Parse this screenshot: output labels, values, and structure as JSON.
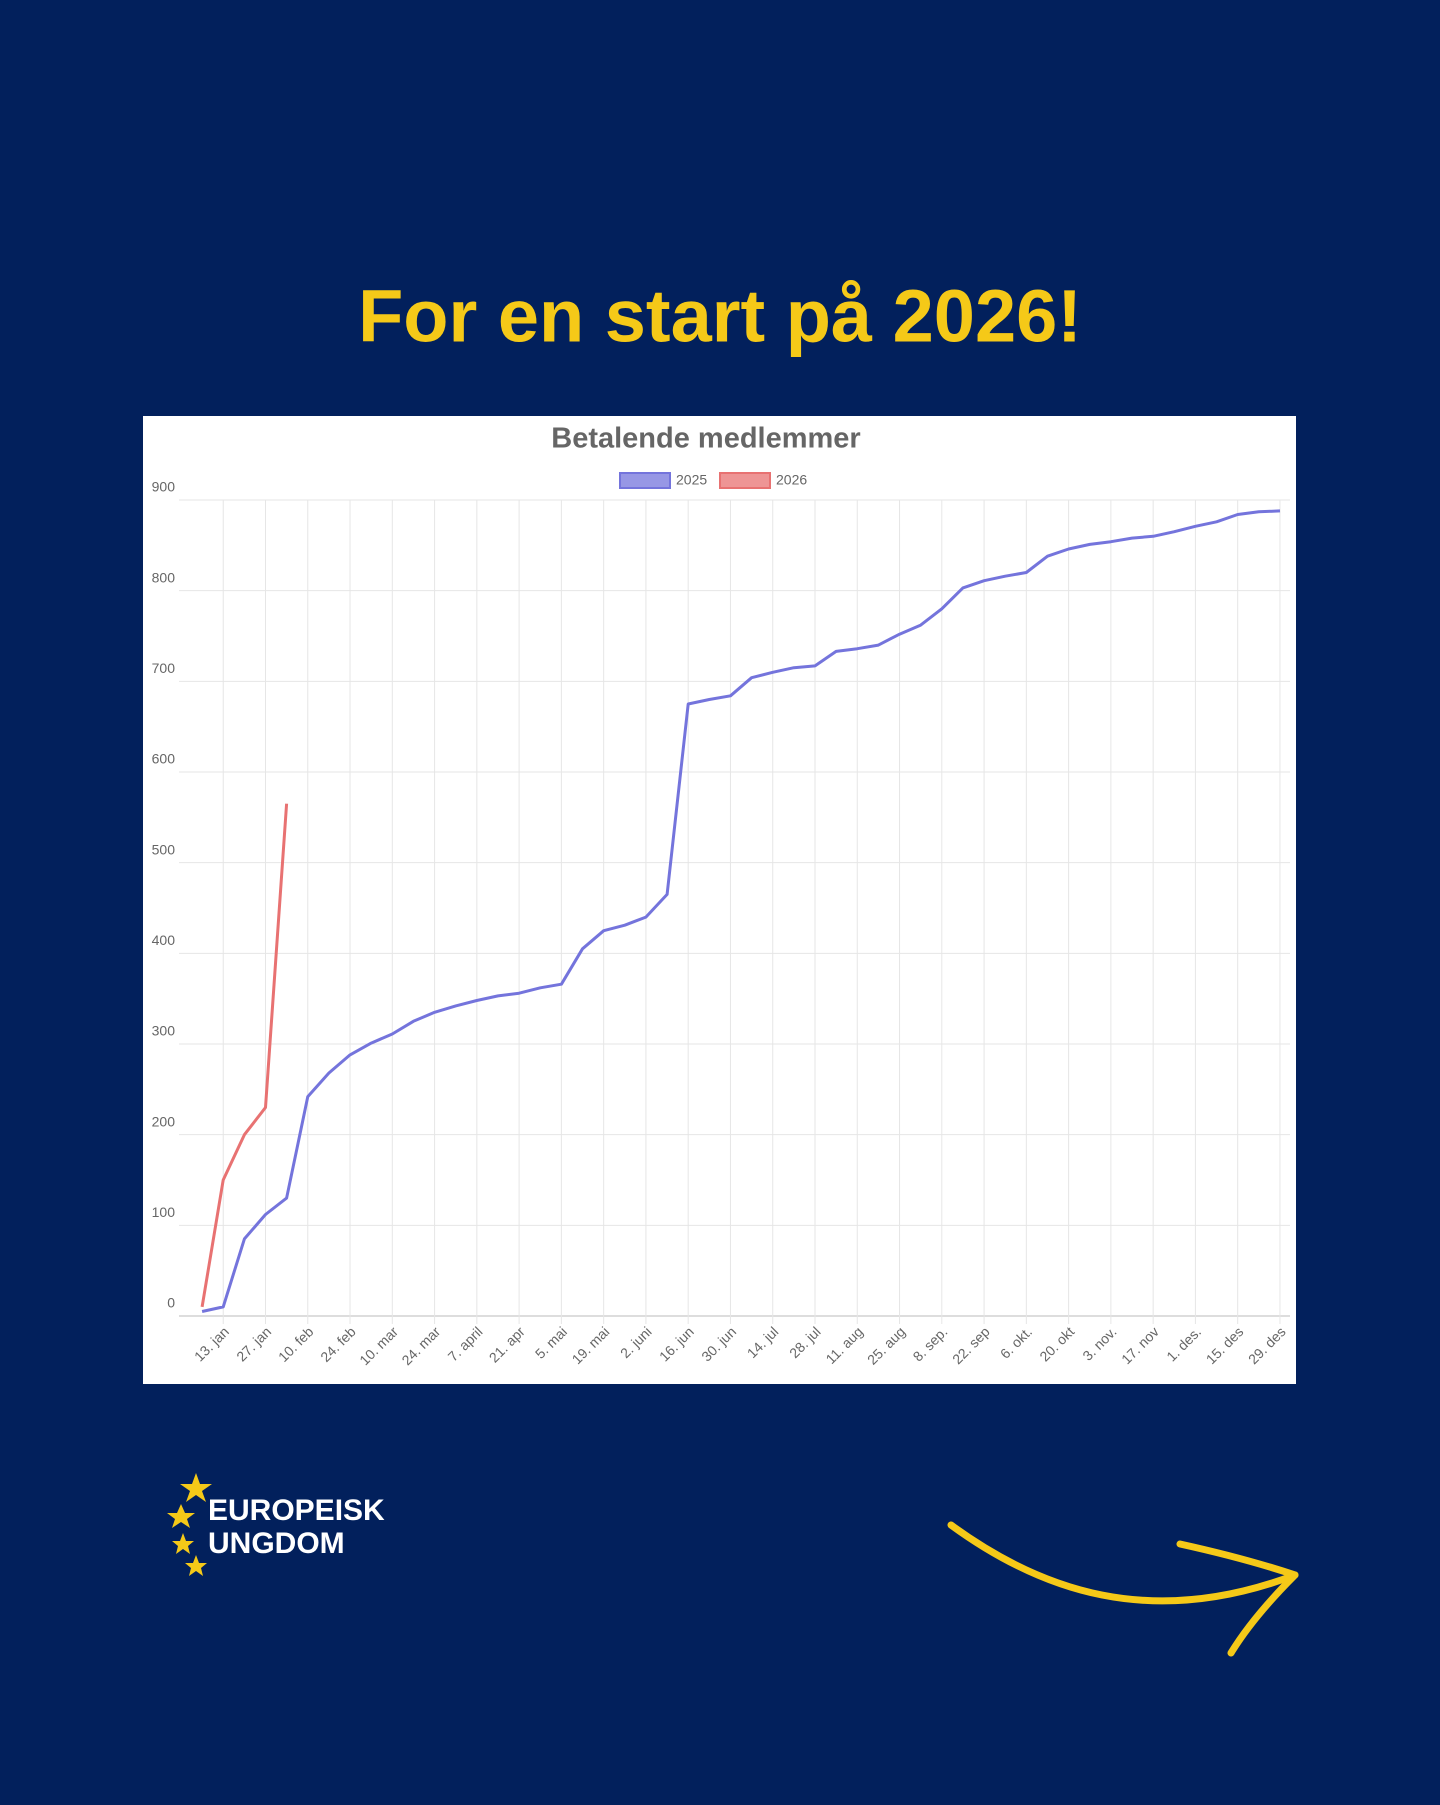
{
  "header": {
    "title": "For en start på 2026!"
  },
  "logo": {
    "lines": [
      "EUROPEISK",
      "UNGDOM"
    ]
  },
  "chart_data": {
    "type": "line",
    "title": "Betalende medlemmer",
    "categories": [
      null,
      "13. jan",
      null,
      "27. jan",
      null,
      "10. feb",
      null,
      "24. feb",
      null,
      "10. mar",
      null,
      "24. mar",
      null,
      "7. april",
      null,
      "21. apr",
      null,
      "5. mai",
      null,
      "19. mai",
      null,
      "2. juni",
      null,
      "16. jun",
      null,
      "30. jun",
      null,
      "14. jul",
      null,
      "28. jul",
      null,
      "11. aug",
      null,
      "25. aug",
      null,
      "8. sep.",
      null,
      "22. sep",
      null,
      "6. okt.",
      null,
      "20. okt",
      null,
      "3. nov.",
      null,
      "17. nov",
      null,
      "1. des.",
      null,
      "15. des",
      null,
      "29. des"
    ],
    "series": [
      {
        "name": "2025",
        "color": "#7474dc",
        "values": [
          5,
          10,
          85,
          112,
          130,
          242,
          268,
          288,
          301,
          311,
          325,
          335,
          342,
          348,
          353,
          356,
          362,
          366,
          405,
          425,
          431,
          440,
          465,
          675,
          680,
          684,
          704,
          710,
          715,
          717,
          733,
          736,
          740,
          752,
          762,
          780,
          803,
          811,
          816,
          820,
          838,
          846,
          851,
          854,
          858,
          860,
          865,
          871,
          876,
          884,
          887,
          888
        ]
      },
      {
        "name": "2026",
        "color": "#e87272",
        "values": [
          10,
          150,
          200,
          230,
          565,
          null,
          null,
          null,
          null,
          null,
          null,
          null,
          null,
          null,
          null,
          null,
          null,
          null,
          null,
          null,
          null,
          null,
          null,
          null,
          null,
          null,
          null,
          null,
          null,
          null,
          null,
          null,
          null,
          null,
          null,
          null,
          null,
          null,
          null,
          null,
          null,
          null,
          null,
          null,
          null,
          null,
          null,
          null,
          null,
          null,
          null,
          null
        ]
      }
    ],
    "ylim": [
      0,
      900
    ],
    "yticks": [
      0,
      100,
      200,
      300,
      400,
      500,
      600,
      700,
      800,
      900
    ],
    "grid": true
  }
}
